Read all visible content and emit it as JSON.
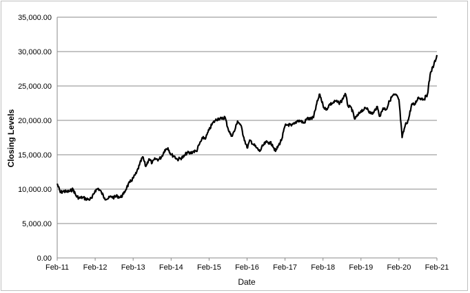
{
  "chart_data": {
    "type": "line",
    "title": "",
    "xlabel": "Date",
    "ylabel": "Closing Levels",
    "ylim": [
      0,
      35000
    ],
    "grid": "horizontal",
    "legend": "none",
    "line_color": "#000000",
    "grid_color": "#888888",
    "y_ticks": [
      0,
      5000,
      10000,
      15000,
      20000,
      25000,
      30000,
      35000
    ],
    "y_tick_labels": [
      "0.00",
      "5,000.00",
      "10,000.00",
      "15,000.00",
      "20,000.00",
      "25,000.00",
      "30,000.00",
      "35,000.00"
    ],
    "x_tick_labels": [
      "Feb-11",
      "Feb-12",
      "Feb-13",
      "Feb-14",
      "Feb-15",
      "Feb-16",
      "Feb-17",
      "Feb-18",
      "Feb-19",
      "Feb-20",
      "Feb-21"
    ],
    "series": [
      {
        "x": [
          "2011-02",
          "2011-03",
          "2011-04",
          "2011-05",
          "2011-06",
          "2011-07",
          "2011-08",
          "2011-09",
          "2011-10",
          "2011-11",
          "2011-12",
          "2012-01",
          "2012-02",
          "2012-03",
          "2012-04",
          "2012-05",
          "2012-06",
          "2012-07",
          "2012-08",
          "2012-09",
          "2012-10",
          "2012-11",
          "2012-12",
          "2013-01",
          "2013-02",
          "2013-03",
          "2013-04",
          "2013-05",
          "2013-06",
          "2013-07",
          "2013-08",
          "2013-09",
          "2013-10",
          "2013-11",
          "2013-12",
          "2014-01",
          "2014-02",
          "2014-03",
          "2014-04",
          "2014-05",
          "2014-06",
          "2014-07",
          "2014-08",
          "2014-09",
          "2014-10",
          "2014-11",
          "2014-12",
          "2015-01",
          "2015-02",
          "2015-03",
          "2015-04",
          "2015-05",
          "2015-06",
          "2015-07",
          "2015-08",
          "2015-09",
          "2015-10",
          "2015-11",
          "2015-12",
          "2016-01",
          "2016-02",
          "2016-03",
          "2016-04",
          "2016-05",
          "2016-06",
          "2016-07",
          "2016-08",
          "2016-09",
          "2016-10",
          "2016-11",
          "2016-12",
          "2017-01",
          "2017-02",
          "2017-03",
          "2017-04",
          "2017-05",
          "2017-06",
          "2017-07",
          "2017-08",
          "2017-09",
          "2017-10",
          "2017-11",
          "2017-12",
          "2018-01",
          "2018-02",
          "2018-03",
          "2018-04",
          "2018-05",
          "2018-06",
          "2018-07",
          "2018-08",
          "2018-09",
          "2018-10",
          "2018-11",
          "2018-12",
          "2019-01",
          "2019-02",
          "2019-03",
          "2019-04",
          "2019-05",
          "2019-06",
          "2019-07",
          "2019-08",
          "2019-09",
          "2019-10",
          "2019-11",
          "2019-12",
          "2020-01",
          "2020-02",
          "2020-03",
          "2020-04",
          "2020-05",
          "2020-06",
          "2020-07",
          "2020-08",
          "2020-09",
          "2020-10",
          "2020-11",
          "2020-12",
          "2021-01",
          "2021-02"
        ],
        "values": [
          10800,
          9500,
          9700,
          9600,
          9700,
          10000,
          9000,
          8700,
          8800,
          8600,
          8500,
          8700,
          9800,
          10100,
          9500,
          8700,
          8600,
          8900,
          8800,
          9000,
          8800,
          9300,
          10300,
          11000,
          11600,
          12300,
          13500,
          14700,
          13300,
          14400,
          13800,
          14400,
          14300,
          14700,
          15700,
          16000,
          15000,
          14800,
          14300,
          14500,
          14700,
          15300,
          15200,
          15500,
          15500,
          16600,
          17400,
          17500,
          18600,
          19500,
          20000,
          20300,
          20200,
          20500,
          18800,
          17700,
          18400,
          19900,
          19300,
          17500,
          16000,
          17100,
          16500,
          16000,
          15500,
          16300,
          16800,
          16800,
          16500,
          15500,
          16400,
          17300,
          19200,
          19400,
          19200,
          19500,
          20000,
          19900,
          19600,
          20300,
          20200,
          20400,
          22400,
          23800,
          22200,
          21500,
          22300,
          22500,
          22800,
          22500,
          22900,
          23900,
          22000,
          21800,
          20200,
          20700,
          21400,
          21600,
          21800,
          21000,
          21100,
          22000,
          20600,
          21800,
          21600,
          22800,
          23600,
          23700,
          23000,
          17500,
          19300,
          20100,
          22300,
          22300,
          23300,
          23200,
          23100,
          23800,
          27000,
          28000,
          29500
        ]
      }
    ]
  }
}
